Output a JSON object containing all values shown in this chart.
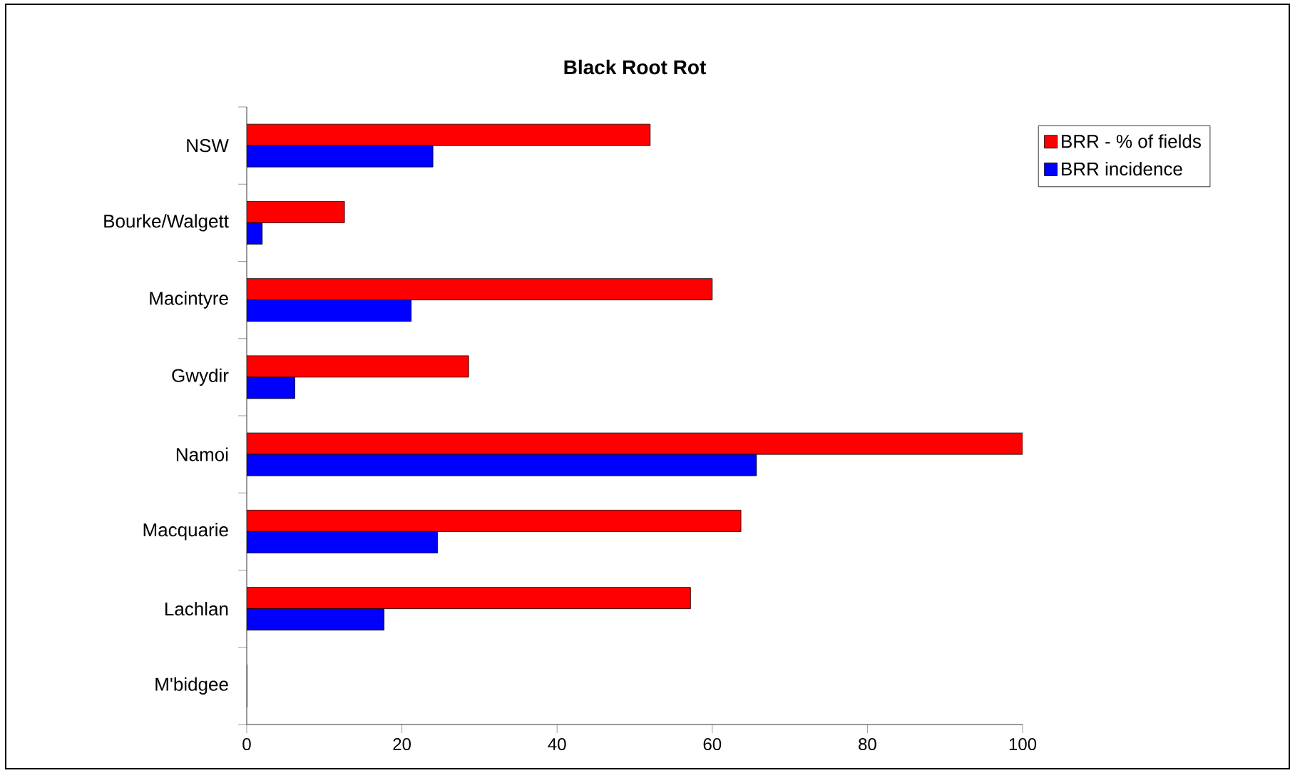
{
  "chart_data": {
    "type": "bar",
    "orientation": "horizontal",
    "title": "Black Root Rot",
    "categories": [
      "NSW",
      "Bourke/Walgett",
      "Macintyre",
      "Gwydir",
      "Namoi",
      "Macquarie",
      "Lachlan",
      "M'bidgee"
    ],
    "series": [
      {
        "name": "BRR - % of fields",
        "color": "#ff0000",
        "values": [
          52.0,
          12.6,
          60.0,
          28.6,
          100,
          63.7,
          57.2,
          0
        ]
      },
      {
        "name": "BRR incidence",
        "color": "#0000ff",
        "values": [
          24.0,
          2.0,
          21.2,
          6.2,
          65.7,
          24.6,
          17.7,
          0
        ]
      }
    ],
    "xlim": [
      0,
      100
    ],
    "xticks": [
      0,
      20,
      40,
      60,
      80,
      100
    ],
    "grid": false,
    "legend": "top right"
  }
}
